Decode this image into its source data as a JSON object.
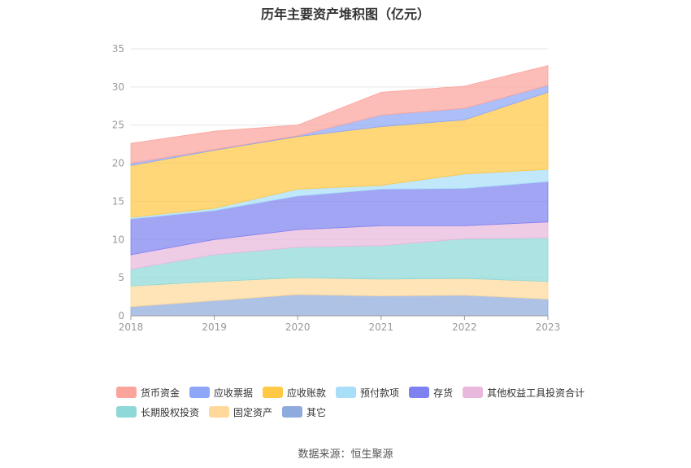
{
  "chart_data": {
    "type": "area",
    "stacked": true,
    "title": "历年主要资产堆积图（亿元）",
    "xlabel": "",
    "ylabel": "",
    "categories": [
      "2018",
      "2019",
      "2020",
      "2021",
      "2022",
      "2023"
    ],
    "ylim": [
      0,
      35
    ],
    "yticks": [
      0,
      5,
      10,
      15,
      20,
      25,
      30,
      35
    ],
    "grid": true,
    "legend_position": "bottom",
    "series": [
      {
        "name": "其它",
        "color": "#8faadc",
        "values": [
          1.2,
          2.0,
          2.8,
          2.6,
          2.7,
          2.2
        ]
      },
      {
        "name": "固定资产",
        "color": "#ffd99b",
        "values": [
          2.7,
          2.5,
          2.2,
          2.2,
          2.2,
          2.3
        ]
      },
      {
        "name": "长期股权投资",
        "color": "#8ed9d8",
        "values": [
          2.2,
          3.5,
          4.0,
          4.4,
          5.2,
          5.7
        ]
      },
      {
        "name": "其他权益工具投资合计",
        "color": "#e8b9dc",
        "values": [
          1.9,
          2.0,
          2.3,
          2.6,
          1.7,
          2.1
        ]
      },
      {
        "name": "存货",
        "color": "#7e82f0",
        "values": [
          4.7,
          3.8,
          4.4,
          4.8,
          4.9,
          5.3
        ]
      },
      {
        "name": "预付款项",
        "color": "#a9def8",
        "values": [
          0.2,
          0.3,
          0.9,
          0.5,
          1.9,
          1.6
        ]
      },
      {
        "name": "应收账款",
        "color": "#ffc845",
        "values": [
          6.8,
          7.6,
          6.9,
          7.7,
          7.1,
          10.1
        ]
      },
      {
        "name": "应收票据",
        "color": "#8da6f7",
        "values": [
          0.3,
          0.1,
          0.1,
          1.5,
          1.5,
          0.9
        ]
      },
      {
        "name": "货币资金",
        "color": "#fba49c",
        "values": [
          2.6,
          2.4,
          1.4,
          3.0,
          2.9,
          2.6
        ]
      }
    ],
    "legend_order": [
      "货币资金",
      "应收票据",
      "应收账款",
      "预付款项",
      "存货",
      "其他权益工具投资合计",
      "长期股权投资",
      "固定资产",
      "其它"
    ]
  },
  "source_text": "数据来源：恒生聚源"
}
